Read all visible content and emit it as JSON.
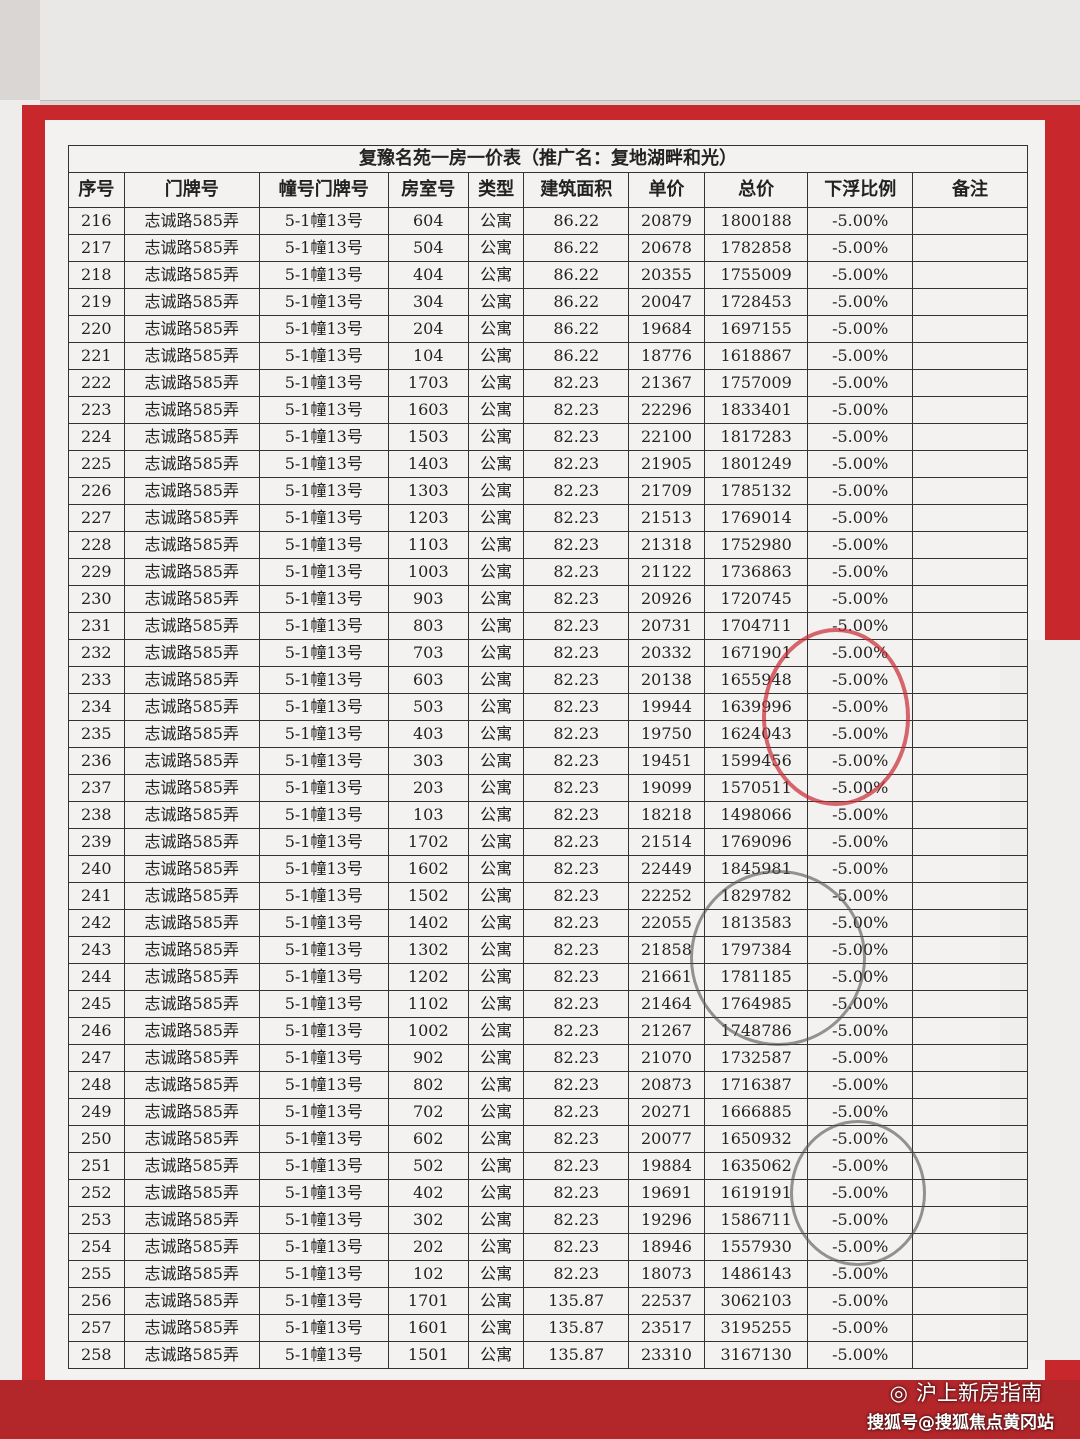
{
  "title": "复豫名苑一房一价表（推广名：复地湖畔和光）",
  "headers": [
    "序号",
    "门牌号",
    "幢号门牌号",
    "房室号",
    "类型",
    "建筑面积",
    "单价",
    "总价",
    "下浮比例",
    "备注"
  ],
  "common": {
    "street": "志诚路585弄",
    "building": "5-1幢13号",
    "type": "公寓",
    "discount": "-5.00%"
  },
  "rows": [
    [
      "216",
      "604",
      "86.22",
      "20879",
      "1800188"
    ],
    [
      "217",
      "504",
      "86.22",
      "20678",
      "1782858"
    ],
    [
      "218",
      "404",
      "86.22",
      "20355",
      "1755009"
    ],
    [
      "219",
      "304",
      "86.22",
      "20047",
      "1728453"
    ],
    [
      "220",
      "204",
      "86.22",
      "19684",
      "1697155"
    ],
    [
      "221",
      "104",
      "86.22",
      "18776",
      "1618867"
    ],
    [
      "222",
      "1703",
      "82.23",
      "21367",
      "1757009"
    ],
    [
      "223",
      "1603",
      "82.23",
      "22296",
      "1833401"
    ],
    [
      "224",
      "1503",
      "82.23",
      "22100",
      "1817283"
    ],
    [
      "225",
      "1403",
      "82.23",
      "21905",
      "1801249"
    ],
    [
      "226",
      "1303",
      "82.23",
      "21709",
      "1785132"
    ],
    [
      "227",
      "1203",
      "82.23",
      "21513",
      "1769014"
    ],
    [
      "228",
      "1103",
      "82.23",
      "21318",
      "1752980"
    ],
    [
      "229",
      "1003",
      "82.23",
      "21122",
      "1736863"
    ],
    [
      "230",
      "903",
      "82.23",
      "20926",
      "1720745"
    ],
    [
      "231",
      "803",
      "82.23",
      "20731",
      "1704711"
    ],
    [
      "232",
      "703",
      "82.23",
      "20332",
      "1671901"
    ],
    [
      "233",
      "603",
      "82.23",
      "20138",
      "1655948"
    ],
    [
      "234",
      "503",
      "82.23",
      "19944",
      "1639996"
    ],
    [
      "235",
      "403",
      "82.23",
      "19750",
      "1624043"
    ],
    [
      "236",
      "303",
      "82.23",
      "19451",
      "1599456"
    ],
    [
      "237",
      "203",
      "82.23",
      "19099",
      "1570511"
    ],
    [
      "238",
      "103",
      "82.23",
      "18218",
      "1498066"
    ],
    [
      "239",
      "1702",
      "82.23",
      "21514",
      "1769096"
    ],
    [
      "240",
      "1602",
      "82.23",
      "22449",
      "1845981"
    ],
    [
      "241",
      "1502",
      "82.23",
      "22252",
      "1829782"
    ],
    [
      "242",
      "1402",
      "82.23",
      "22055",
      "1813583"
    ],
    [
      "243",
      "1302",
      "82.23",
      "21858",
      "1797384"
    ],
    [
      "244",
      "1202",
      "82.23",
      "21661",
      "1781185"
    ],
    [
      "245",
      "1102",
      "82.23",
      "21464",
      "1764985"
    ],
    [
      "246",
      "1002",
      "82.23",
      "21267",
      "1748786"
    ],
    [
      "247",
      "902",
      "82.23",
      "21070",
      "1732587"
    ],
    [
      "248",
      "802",
      "82.23",
      "20873",
      "1716387"
    ],
    [
      "249",
      "702",
      "82.23",
      "20271",
      "1666885"
    ],
    [
      "250",
      "602",
      "82.23",
      "20077",
      "1650932"
    ],
    [
      "251",
      "502",
      "82.23",
      "19884",
      "1635062"
    ],
    [
      "252",
      "402",
      "82.23",
      "19691",
      "1619191"
    ],
    [
      "253",
      "302",
      "82.23",
      "19296",
      "1586711"
    ],
    [
      "254",
      "202",
      "82.23",
      "18946",
      "1557930"
    ],
    [
      "255",
      "102",
      "82.23",
      "18073",
      "1486143"
    ],
    [
      "256",
      "1701",
      "135.87",
      "22537",
      "3062103"
    ],
    [
      "257",
      "1601",
      "135.87",
      "23517",
      "3195255"
    ],
    [
      "258",
      "1501",
      "135.87",
      "23310",
      "3167130"
    ]
  ],
  "watermark": {
    "account": "沪上新房指南",
    "source": "搜狐号@搜狐焦点黄冈站"
  },
  "colors": {
    "board": "#c8282c",
    "stamp_red": "#c82832"
  }
}
